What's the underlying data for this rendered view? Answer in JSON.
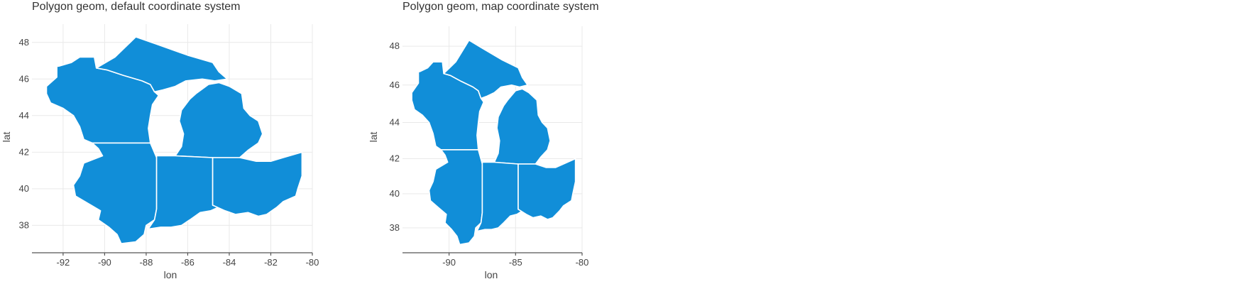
{
  "chart_data": [
    {
      "type": "map",
      "title": "Polygon geom, default coordinate system",
      "xlabel": "lon",
      "ylabel": "lat",
      "xlim": [
        -93.5,
        -80
      ],
      "ylim": [
        36.5,
        49
      ],
      "xticks": [
        -92,
        -90,
        -88,
        -86,
        -84,
        -82,
        -80
      ],
      "yticks": [
        38,
        40,
        42,
        44,
        46,
        48
      ],
      "fill_color": "#118ed8",
      "border_color": "#ffffff",
      "projection": "none",
      "grid": true
    },
    {
      "type": "map",
      "title": "Polygon geom, map coordinate system",
      "xlabel": "lon",
      "ylabel": "lat",
      "xlim": [
        -93.5,
        -80
      ],
      "ylim": [
        36.5,
        49
      ],
      "xticks": [
        -90,
        -85,
        -80
      ],
      "yticks": [
        38,
        40,
        42,
        44,
        46,
        48
      ],
      "fill_color": "#118ed8",
      "border_color": "#ffffff",
      "projection": "mercator",
      "grid": true
    }
  ],
  "shapes": {
    "wisconsin": [
      [
        -92.9,
        46.6
      ],
      [
        -92.2,
        46.7
      ],
      [
        -91.6,
        46.9
      ],
      [
        -91.2,
        47.2
      ],
      [
        -90.5,
        47.2
      ],
      [
        -90.4,
        46.6
      ],
      [
        -89.9,
        46.5
      ],
      [
        -89.1,
        46.2
      ],
      [
        -88.2,
        45.9
      ],
      [
        -87.8,
        45.7
      ],
      [
        -87.6,
        45.3
      ],
      [
        -87.4,
        45.1
      ],
      [
        -87.7,
        44.6
      ],
      [
        -87.8,
        44.0
      ],
      [
        -87.9,
        43.3
      ],
      [
        -87.8,
        42.5
      ],
      [
        -88.7,
        42.5
      ],
      [
        -90.6,
        42.5
      ],
      [
        -91.0,
        42.7
      ],
      [
        -91.2,
        43.4
      ],
      [
        -91.5,
        44.0
      ],
      [
        -92.0,
        44.4
      ],
      [
        -92.6,
        44.7
      ],
      [
        -92.8,
        45.2
      ],
      [
        -92.8,
        45.6
      ],
      [
        -92.3,
        46.1
      ],
      [
        -92.3,
        46.7
      ],
      [
        -92.9,
        46.6
      ]
    ],
    "michigan_up": [
      [
        -90.4,
        46.6
      ],
      [
        -89.5,
        47.2
      ],
      [
        -88.5,
        48.3
      ],
      [
        -87.5,
        47.9
      ],
      [
        -86.0,
        47.3
      ],
      [
        -84.8,
        46.9
      ],
      [
        -84.5,
        46.4
      ],
      [
        -84.1,
        46.0
      ],
      [
        -84.7,
        45.9
      ],
      [
        -85.3,
        46.0
      ],
      [
        -86.1,
        45.9
      ],
      [
        -86.6,
        45.6
      ],
      [
        -87.2,
        45.4
      ],
      [
        -87.6,
        45.3
      ],
      [
        -87.8,
        45.7
      ],
      [
        -88.2,
        45.9
      ],
      [
        -89.1,
        46.2
      ],
      [
        -89.9,
        46.5
      ],
      [
        -90.4,
        46.6
      ]
    ],
    "michigan_lp": [
      [
        -86.6,
        41.8
      ],
      [
        -86.3,
        42.3
      ],
      [
        -86.2,
        43.0
      ],
      [
        -86.4,
        43.7
      ],
      [
        -86.3,
        44.3
      ],
      [
        -85.9,
        44.9
      ],
      [
        -85.6,
        45.2
      ],
      [
        -85.0,
        45.7
      ],
      [
        -84.5,
        45.8
      ],
      [
        -84.0,
        45.6
      ],
      [
        -83.4,
        45.2
      ],
      [
        -83.3,
        44.4
      ],
      [
        -83.0,
        44.0
      ],
      [
        -82.6,
        43.7
      ],
      [
        -82.4,
        43.0
      ],
      [
        -82.6,
        42.5
      ],
      [
        -83.1,
        42.1
      ],
      [
        -83.5,
        41.7
      ],
      [
        -84.8,
        41.7
      ],
      [
        -86.6,
        41.8
      ]
    ],
    "illinois": [
      [
        -90.6,
        42.5
      ],
      [
        -90.3,
        42.2
      ],
      [
        -90.1,
        41.8
      ],
      [
        -91.0,
        41.4
      ],
      [
        -91.2,
        40.7
      ],
      [
        -91.5,
        40.2
      ],
      [
        -91.4,
        39.6
      ],
      [
        -90.8,
        39.2
      ],
      [
        -90.2,
        38.8
      ],
      [
        -90.3,
        38.3
      ],
      [
        -89.8,
        37.9
      ],
      [
        -89.4,
        37.5
      ],
      [
        -89.2,
        37.0
      ],
      [
        -88.5,
        37.1
      ],
      [
        -88.1,
        37.5
      ],
      [
        -88.0,
        38.0
      ],
      [
        -87.6,
        38.3
      ],
      [
        -87.5,
        38.9
      ],
      [
        -87.5,
        40.0
      ],
      [
        -87.5,
        41.7
      ],
      [
        -87.8,
        42.5
      ],
      [
        -90.6,
        42.5
      ]
    ],
    "indiana": [
      [
        -87.5,
        41.8
      ],
      [
        -86.6,
        41.8
      ],
      [
        -84.8,
        41.7
      ],
      [
        -84.8,
        40.5
      ],
      [
        -84.8,
        39.1
      ],
      [
        -84.5,
        39.0
      ],
      [
        -84.9,
        38.8
      ],
      [
        -85.4,
        38.7
      ],
      [
        -85.9,
        38.3
      ],
      [
        -86.3,
        38.0
      ],
      [
        -86.8,
        37.9
      ],
      [
        -87.3,
        37.9
      ],
      [
        -87.9,
        37.8
      ],
      [
        -87.6,
        38.3
      ],
      [
        -87.5,
        38.9
      ],
      [
        -87.5,
        40.0
      ],
      [
        -87.5,
        41.8
      ]
    ],
    "ohio": [
      [
        -84.8,
        41.7
      ],
      [
        -83.5,
        41.7
      ],
      [
        -82.7,
        41.5
      ],
      [
        -82.0,
        41.5
      ],
      [
        -81.4,
        41.7
      ],
      [
        -80.5,
        42.0
      ],
      [
        -80.5,
        40.7
      ],
      [
        -80.7,
        40.0
      ],
      [
        -80.8,
        39.6
      ],
      [
        -81.4,
        39.3
      ],
      [
        -81.7,
        39.0
      ],
      [
        -82.2,
        38.6
      ],
      [
        -82.6,
        38.5
      ],
      [
        -83.1,
        38.7
      ],
      [
        -83.7,
        38.6
      ],
      [
        -84.2,
        38.8
      ],
      [
        -84.8,
        39.1
      ],
      [
        -84.8,
        40.5
      ],
      [
        -84.8,
        41.7
      ]
    ]
  }
}
